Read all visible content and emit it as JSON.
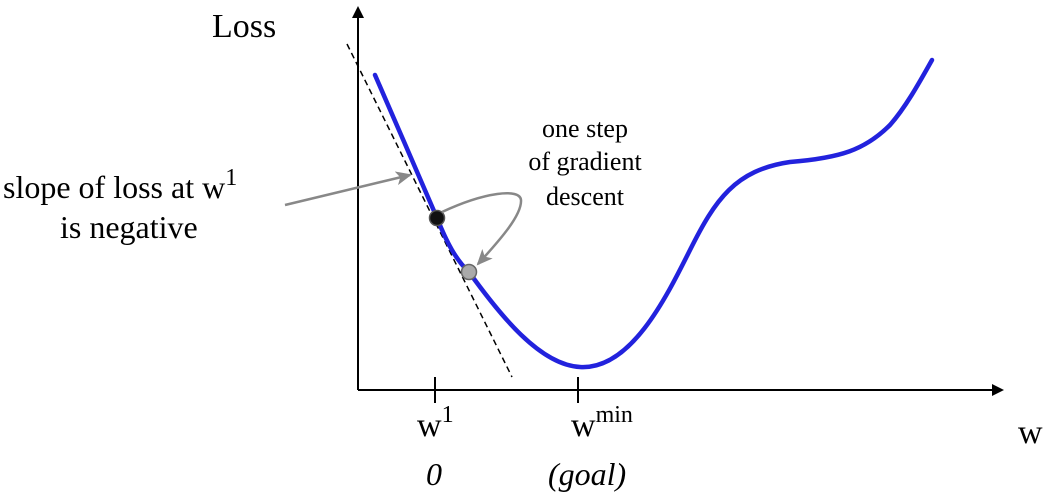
{
  "axes": {
    "y_label": "Loss",
    "x_label": "w"
  },
  "ticks": {
    "w1": {
      "base": "w",
      "sup": "1",
      "sub_label": "0"
    },
    "wmin": {
      "base": "w",
      "sup": "min",
      "sub_label": "(goal)"
    }
  },
  "annotations": {
    "slope": {
      "line1_text": "slope of loss at w",
      "line1_sup": "1",
      "line2": "is negative"
    },
    "step": {
      "line1": "one step",
      "line2": "of gradient",
      "line3": "descent"
    }
  },
  "colors": {
    "curve": "#2222dd",
    "axis": "#000000",
    "arrow": "#888888",
    "point_current": "#111111",
    "point_next": "#aaaaaa"
  }
}
